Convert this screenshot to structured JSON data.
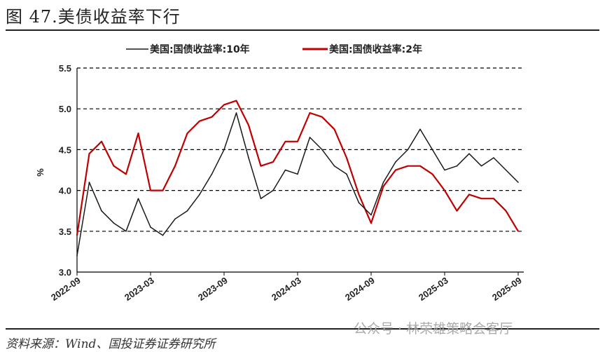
{
  "title": "图 47.美债收益率下行",
  "source": "资料来源：Wind、国投证券证券研究所",
  "watermark": "公众号 · 林荣雄策略会客厅",
  "colors": {
    "series_10y": "#1a1a1a",
    "series_2y": "#c00000"
  },
  "chart_data": {
    "type": "line",
    "title": "",
    "xlabel": "",
    "ylabel": "%",
    "ylim": [
      3.0,
      5.5
    ],
    "yticks": [
      "3.0",
      "3.5",
      "4.0",
      "4.5",
      "5.0",
      "5.5"
    ],
    "xticks": [
      "2022-09",
      "2023-03",
      "2023-09",
      "2024-03",
      "2024-09",
      "2025-03",
      "2025-09"
    ],
    "grid": "horizontal dashed",
    "legend_position": "top",
    "x": [
      "2022-09",
      "2022-10",
      "2022-11",
      "2022-12",
      "2023-01",
      "2023-02",
      "2023-03",
      "2023-04",
      "2023-05",
      "2023-06",
      "2023-07",
      "2023-08",
      "2023-09",
      "2023-10",
      "2023-11",
      "2023-12",
      "2024-01",
      "2024-02",
      "2024-03",
      "2024-04",
      "2024-05",
      "2024-06",
      "2024-07",
      "2024-08",
      "2024-09",
      "2024-10",
      "2024-11",
      "2024-12",
      "2025-01",
      "2025-02",
      "2025-03",
      "2025-04",
      "2025-05",
      "2025-06",
      "2025-07",
      "2025-08",
      "2025-09"
    ],
    "series": [
      {
        "name": "美国:国债收益率:10年",
        "values": [
          3.2,
          4.1,
          3.75,
          3.6,
          3.5,
          3.9,
          3.55,
          3.45,
          3.65,
          3.75,
          3.95,
          4.2,
          4.5,
          4.95,
          4.4,
          3.9,
          4.0,
          4.25,
          4.2,
          4.65,
          4.5,
          4.3,
          4.2,
          3.85,
          3.7,
          4.1,
          4.35,
          4.5,
          4.75,
          4.5,
          4.25,
          4.3,
          4.45,
          4.3,
          4.4,
          4.25,
          4.1
        ]
      },
      {
        "name": "美国:国债收益率:2年",
        "values": [
          3.45,
          4.45,
          4.6,
          4.3,
          4.2,
          4.7,
          4.0,
          4.0,
          4.3,
          4.7,
          4.85,
          4.9,
          5.05,
          5.1,
          4.8,
          4.3,
          4.35,
          4.6,
          4.6,
          4.95,
          4.9,
          4.75,
          4.4,
          3.95,
          3.6,
          4.05,
          4.25,
          4.3,
          4.3,
          4.2,
          4.0,
          3.75,
          3.95,
          3.9,
          3.9,
          3.75,
          3.5
        ]
      }
    ]
  }
}
